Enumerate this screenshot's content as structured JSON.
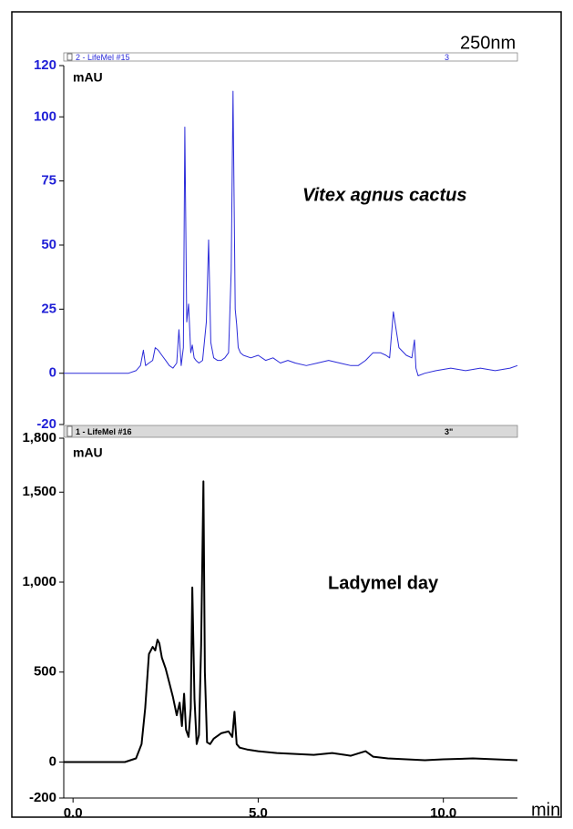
{
  "chart_data": [
    {
      "type": "line",
      "header": "2 - LifeMel #15",
      "header_marker": "3",
      "wavelength": "250nm",
      "y_unit": "mAU",
      "annotation": "Vitex agnus cactus",
      "x": [
        -0.25,
        1.5,
        1.7,
        1.82,
        1.9,
        1.96,
        2.05,
        2.15,
        2.22,
        2.3,
        2.4,
        2.5,
        2.6,
        2.7,
        2.8,
        2.86,
        2.92,
        2.98,
        3.02,
        3.07,
        3.12,
        3.18,
        3.22,
        3.27,
        3.32,
        3.4,
        3.5,
        3.6,
        3.66,
        3.72,
        3.8,
        3.9,
        4.0,
        4.1,
        4.2,
        4.27,
        4.32,
        4.38,
        4.42,
        4.46,
        4.52,
        4.6,
        4.8,
        5.0,
        5.2,
        5.4,
        5.6,
        5.8,
        6.0,
        6.3,
        6.6,
        6.9,
        7.2,
        7.5,
        7.7,
        7.9,
        8.1,
        8.3,
        8.45,
        8.55,
        8.65,
        8.8,
        9.0,
        9.15,
        9.22,
        9.26,
        9.32,
        9.5,
        9.8,
        10.2,
        10.6,
        11.0,
        11.4,
        11.8,
        12.0
      ],
      "series": [
        {
          "color": "#2b2bd9",
          "values": [
            0,
            0,
            1,
            3,
            9,
            3,
            4,
            5,
            10,
            9,
            7,
            5,
            3,
            2,
            4,
            17,
            3,
            10,
            96,
            20,
            27,
            8,
            11,
            6,
            5,
            4,
            5,
            20,
            52,
            12,
            6,
            5,
            5,
            6,
            8,
            40,
            110,
            25,
            19,
            10,
            8,
            7,
            6,
            7,
            5,
            6,
            4,
            5,
            4,
            3,
            4,
            5,
            4,
            3,
            3,
            5,
            8,
            8,
            7,
            6,
            24,
            10,
            7,
            6,
            13,
            2,
            -1,
            0,
            1,
            2,
            1,
            2,
            1,
            2,
            3
          ]
        }
      ],
      "tick_color": "#1f1fd6",
      "xlim": [
        -0.25,
        12
      ],
      "ylim": [
        -20,
        120
      ],
      "yticks": [
        120,
        100,
        75,
        50,
        25,
        0,
        -20
      ]
    },
    {
      "type": "line",
      "header": "1 - LifeMel #16",
      "header_marker": "3\"",
      "y_unit": "mAU",
      "annotation": "Ladymel day",
      "xlabel": "min",
      "x": [
        -0.25,
        1.4,
        1.7,
        1.85,
        1.95,
        2.05,
        2.15,
        2.22,
        2.28,
        2.33,
        2.4,
        2.5,
        2.6,
        2.7,
        2.8,
        2.88,
        2.94,
        3.0,
        3.05,
        3.12,
        3.18,
        3.22,
        3.28,
        3.34,
        3.4,
        3.46,
        3.52,
        3.56,
        3.62,
        3.7,
        3.8,
        4.0,
        4.2,
        4.3,
        4.36,
        4.42,
        4.5,
        4.7,
        5.0,
        5.5,
        6.0,
        6.5,
        7.0,
        7.5,
        7.9,
        8.1,
        8.5,
        9.0,
        9.5,
        10.0,
        10.8,
        11.4,
        12.0
      ],
      "series": [
        {
          "color": "#000000",
          "values": [
            0,
            0,
            20,
            100,
            300,
            600,
            640,
            620,
            680,
            660,
            580,
            520,
            440,
            360,
            260,
            330,
            200,
            380,
            180,
            140,
            300,
            970,
            350,
            100,
            150,
            650,
            1560,
            500,
            110,
            100,
            130,
            160,
            170,
            140,
            280,
            100,
            80,
            70,
            60,
            50,
            45,
            40,
            50,
            35,
            60,
            30,
            20,
            15,
            10,
            15,
            20,
            15,
            10
          ]
        }
      ],
      "tick_color": "#000000",
      "xlim": [
        -0.25,
        12
      ],
      "ylim": [
        -200,
        1800
      ],
      "yticks": [
        {
          "value": 1800,
          "label": "1,800"
        },
        {
          "value": 1500,
          "label": "1,500"
        },
        {
          "value": 1000,
          "label": "1,000"
        },
        500,
        0,
        -200
      ],
      "xticks": [
        {
          "value": 0,
          "label": "0.0"
        },
        {
          "value": 5,
          "label": "5.0"
        },
        {
          "value": 10,
          "label": "10.0"
        }
      ]
    }
  ]
}
